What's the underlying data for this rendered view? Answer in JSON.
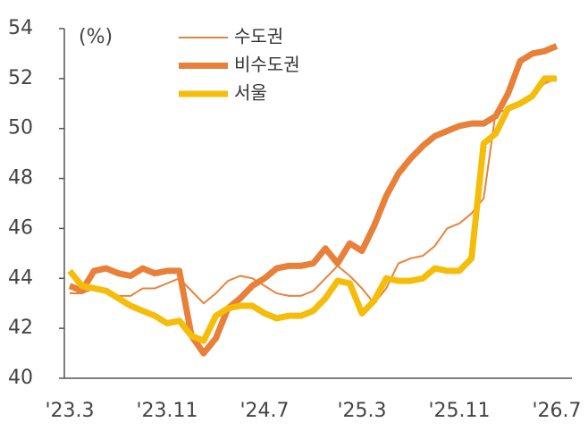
{
  "chart_data": {
    "type": "line",
    "unit_label": "(%)",
    "categories": [
      "'23.3",
      null,
      null,
      null,
      null,
      null,
      null,
      null,
      "'23.11",
      null,
      null,
      null,
      null,
      null,
      null,
      null,
      "'24.7",
      null,
      null,
      null,
      null,
      null,
      null,
      null,
      "'25.3",
      null,
      null,
      null,
      null,
      null,
      null,
      null,
      "'25.11",
      null,
      null,
      null,
      null,
      null,
      null,
      null,
      "'26.7"
    ],
    "ylim": [
      40,
      54
    ],
    "yticks": [
      40,
      42,
      44,
      46,
      48,
      50,
      52,
      54
    ],
    "series": [
      {
        "name": "수도권",
        "color": "#e8833a",
        "width": 2,
        "values": [
          43.4,
          43.4,
          43.6,
          43.5,
          43.3,
          43.3,
          43.6,
          43.6,
          43.8,
          44.0,
          43.5,
          43.0,
          43.4,
          43.9,
          44.1,
          44.0,
          43.7,
          43.4,
          43.3,
          43.3,
          43.5,
          44.0,
          44.5,
          44.1,
          43.6,
          43.0,
          43.6,
          44.6,
          44.8,
          44.9,
          45.3,
          46.0,
          46.2,
          46.6,
          47.2,
          50.7,
          50.7,
          51.0,
          51.3,
          51.8,
          52.0
        ]
      },
      {
        "name": "비수도권",
        "color": "#e8803a",
        "width": 7,
        "values": [
          43.7,
          43.5,
          44.3,
          44.4,
          44.2,
          44.1,
          44.4,
          44.2,
          44.3,
          44.3,
          41.7,
          41.0,
          41.6,
          42.8,
          43.2,
          43.7,
          44.0,
          44.4,
          44.5,
          44.5,
          44.6,
          45.2,
          44.6,
          45.4,
          45.1,
          46.1,
          47.3,
          48.2,
          48.8,
          49.3,
          49.7,
          49.9,
          50.1,
          50.2,
          50.2,
          50.5,
          51.4,
          52.7,
          53.0,
          53.1,
          53.3
        ]
      },
      {
        "name": "서울",
        "color": "#f5bd0a",
        "width": 7,
        "values": [
          44.3,
          43.7,
          43.6,
          43.5,
          43.2,
          42.9,
          42.7,
          42.5,
          42.2,
          42.3,
          41.7,
          41.5,
          42.5,
          42.8,
          42.9,
          42.9,
          42.6,
          42.4,
          42.5,
          42.5,
          42.7,
          43.2,
          43.9,
          43.8,
          42.6,
          43.1,
          44.0,
          43.9,
          43.9,
          44.0,
          44.4,
          44.3,
          44.3,
          44.8,
          49.4,
          49.8,
          50.8,
          51.0,
          51.3,
          52.0,
          52.0
        ]
      }
    ]
  }
}
